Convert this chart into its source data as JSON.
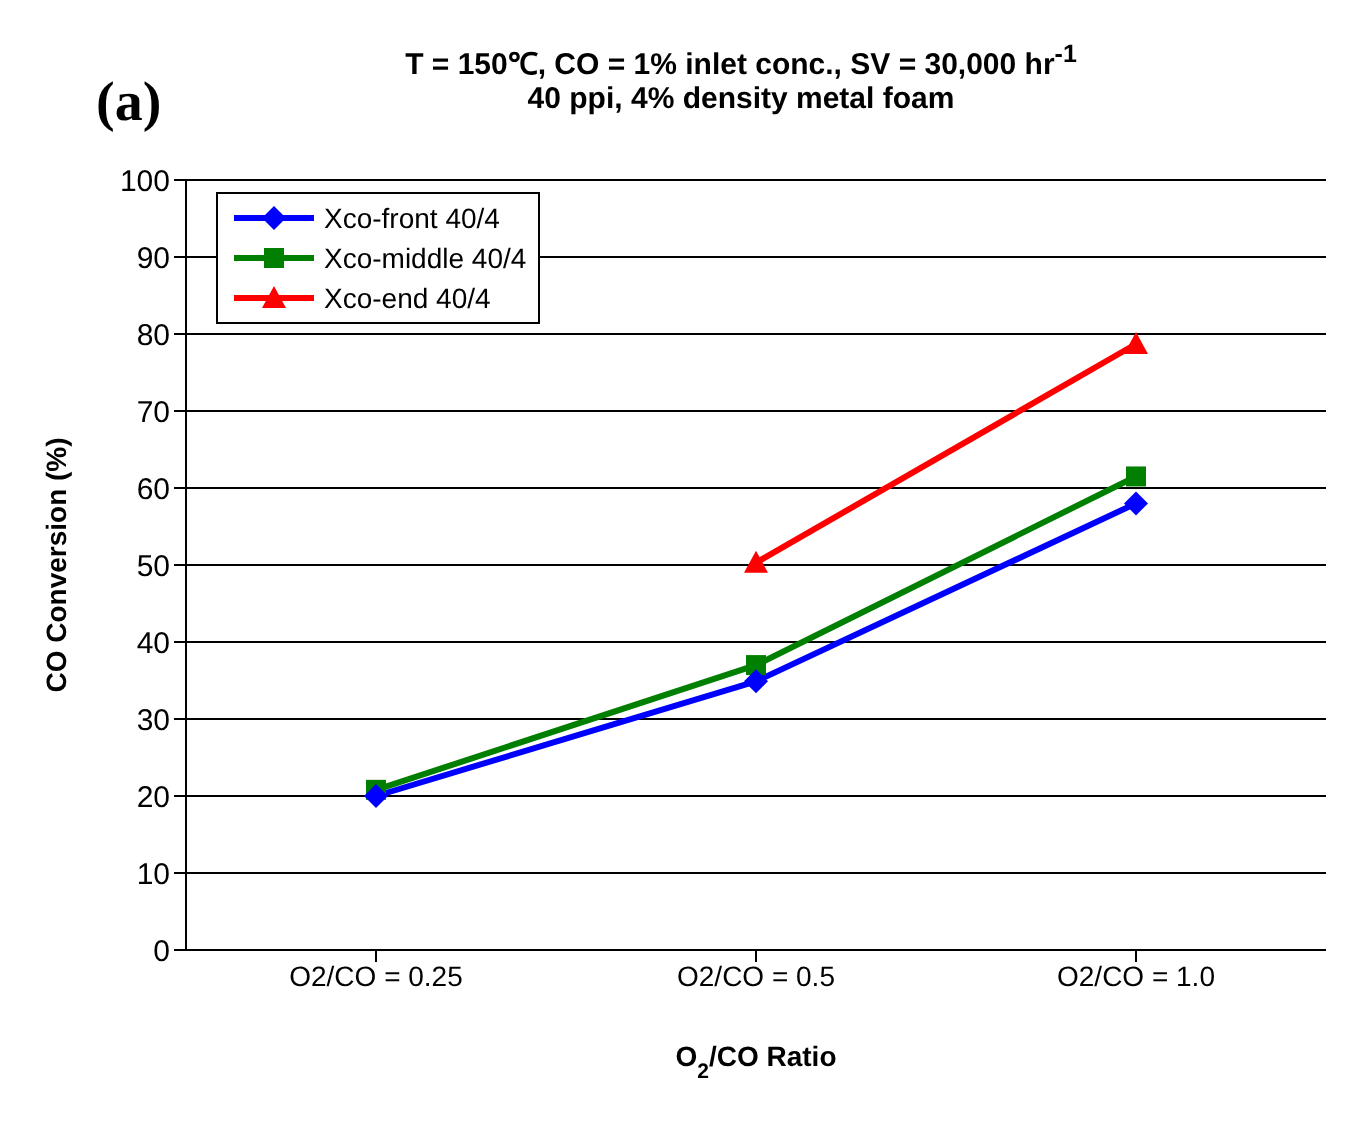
{
  "chart_data": {
    "type": "line",
    "title": "T = 150℃, CO = 1% inlet conc., SV = 30,000 hr$^{-1}$\n40 ppi, 4% density metal foam",
    "annotations": [
      "(a)"
    ],
    "xlabel": "O$_{2}$/CO Ratio",
    "ylabel": "CO Conversion (%)",
    "categories": [
      "O2/CO = 0.25",
      "O2/CO = 0.5",
      "O2/CO = 1.0"
    ],
    "series": [
      {
        "name": "Xco-front 40/4",
        "color": "#0000ff",
        "marker": "diamond",
        "values": [
          20,
          34.9,
          58
        ]
      },
      {
        "name": "Xco-middle 40/4",
        "color": "#007f00",
        "marker": "square",
        "values": [
          20.8,
          37,
          61.5
        ]
      },
      {
        "name": "Xco-end 40/4",
        "color": "#ff0000",
        "marker": "triangle",
        "values": [
          null,
          50.3,
          78.7
        ]
      }
    ],
    "ylim": [
      0,
      100
    ],
    "yticks": [
      0,
      10,
      20,
      30,
      40,
      50,
      60,
      70,
      80,
      90,
      100
    ],
    "grid": "y",
    "legend": "top left"
  }
}
